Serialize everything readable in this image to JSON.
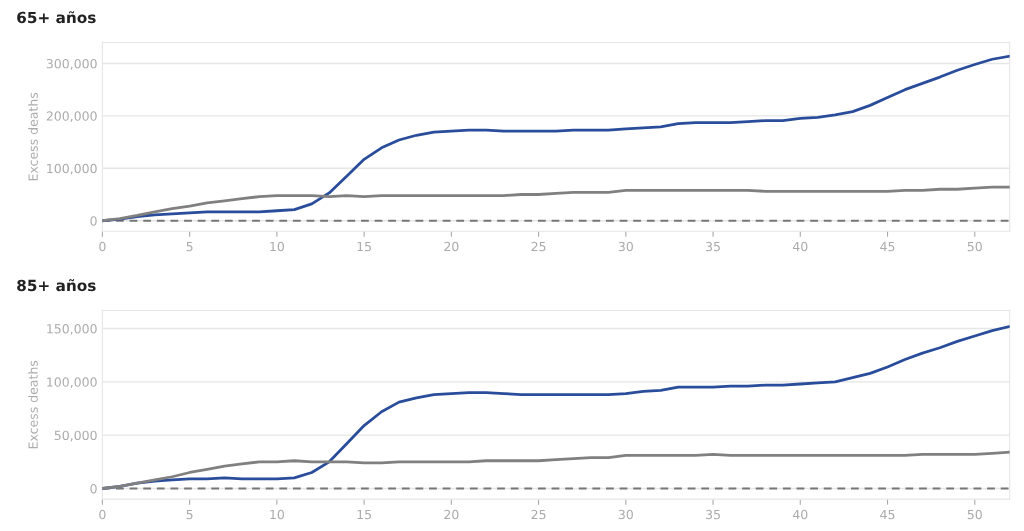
{
  "chart_data": [
    {
      "type": "line",
      "title": "65+ años",
      "ylabel": "Excess deaths",
      "x": [
        0,
        1,
        2,
        3,
        4,
        5,
        6,
        7,
        8,
        9,
        10,
        11,
        12,
        13,
        14,
        15,
        16,
        17,
        18,
        19,
        20,
        21,
        22,
        23,
        24,
        25,
        26,
        27,
        28,
        29,
        30,
        31,
        32,
        33,
        34,
        35,
        36,
        37,
        38,
        39,
        40,
        41,
        42,
        43,
        44,
        45,
        46,
        47,
        48,
        49,
        50,
        51,
        52
      ],
      "series": [
        {
          "color": "#2a4d9b",
          "values": [
            0,
            3000,
            8000,
            11000,
            13000,
            15000,
            17000,
            17000,
            17000,
            17000,
            19000,
            21000,
            32000,
            53000,
            85000,
            117000,
            139000,
            154000,
            163000,
            169000,
            171000,
            173000,
            173000,
            171000,
            171000,
            171000,
            171000,
            173000,
            173000,
            173000,
            175000,
            177000,
            179000,
            185000,
            187000,
            187000,
            187000,
            189000,
            191000,
            191000,
            195000,
            197000,
            202000,
            208000,
            220000,
            235000,
            250000,
            262000,
            274000,
            287000,
            298000,
            308000,
            314000
          ]
        },
        {
          "color": "#808080",
          "values": [
            0,
            4000,
            10000,
            17000,
            23000,
            28000,
            34000,
            38000,
            42000,
            46000,
            48000,
            48000,
            48000,
            46000,
            48000,
            46000,
            48000,
            48000,
            48000,
            48000,
            48000,
            48000,
            48000,
            48000,
            50000,
            50000,
            52000,
            54000,
            54000,
            54000,
            58000,
            58000,
            58000,
            58000,
            58000,
            58000,
            58000,
            58000,
            56000,
            56000,
            56000,
            56000,
            56000,
            56000,
            56000,
            56000,
            58000,
            58000,
            60000,
            60000,
            62000,
            64000,
            64000
          ]
        }
      ],
      "xlim": [
        0,
        52
      ],
      "xticks": [
        0,
        5,
        10,
        15,
        20,
        25,
        30,
        35,
        40,
        45,
        50
      ],
      "ylim": [
        -20000,
        340000
      ],
      "yticks": [
        {
          "value": 0,
          "label": "0"
        },
        {
          "value": 100000,
          "label": "100,000"
        },
        {
          "value": 200000,
          "label": "200,000"
        },
        {
          "value": 300000,
          "label": "300,000"
        }
      ],
      "grid": "y",
      "line_style": "solid",
      "ref_lines": [
        {
          "axis": "y",
          "value": 0,
          "color": "#777777",
          "line_style": "dashed"
        }
      ]
    },
    {
      "type": "line",
      "title": "85+ años",
      "ylabel": "Excess deaths",
      "x": [
        0,
        1,
        2,
        3,
        4,
        5,
        6,
        7,
        8,
        9,
        10,
        11,
        12,
        13,
        14,
        15,
        16,
        17,
        18,
        19,
        20,
        21,
        22,
        23,
        24,
        25,
        26,
        27,
        28,
        29,
        30,
        31,
        32,
        33,
        34,
        35,
        36,
        37,
        38,
        39,
        40,
        41,
        42,
        43,
        44,
        45,
        46,
        47,
        48,
        49,
        50,
        51,
        52
      ],
      "series": [
        {
          "color": "#2a4d9b",
          "values": [
            0,
            2000,
            5000,
            7000,
            8000,
            9000,
            9000,
            10000,
            9000,
            9000,
            9000,
            10000,
            15000,
            25000,
            42000,
            59000,
            72000,
            81000,
            85000,
            88000,
            89000,
            90000,
            90000,
            89000,
            88000,
            88000,
            88000,
            88000,
            88000,
            88000,
            89000,
            91000,
            92000,
            95000,
            95000,
            95000,
            96000,
            96000,
            97000,
            97000,
            98000,
            99000,
            100000,
            104000,
            108000,
            114000,
            121000,
            127000,
            132000,
            138000,
            143000,
            148000,
            152000
          ]
        },
        {
          "color": "#808080",
          "values": [
            0,
            2000,
            5000,
            8000,
            11000,
            15000,
            18000,
            21000,
            23000,
            25000,
            25000,
            26000,
            25000,
            25000,
            25000,
            24000,
            24000,
            25000,
            25000,
            25000,
            25000,
            25000,
            26000,
            26000,
            26000,
            26000,
            27000,
            28000,
            29000,
            29000,
            31000,
            31000,
            31000,
            31000,
            31000,
            32000,
            31000,
            31000,
            31000,
            31000,
            31000,
            31000,
            31000,
            31000,
            31000,
            31000,
            31000,
            32000,
            32000,
            32000,
            32000,
            33000,
            34000
          ]
        }
      ],
      "xlim": [
        0,
        52
      ],
      "xticks": [
        0,
        5,
        10,
        15,
        20,
        25,
        30,
        35,
        40,
        45,
        50
      ],
      "ylim": [
        -10000,
        167000
      ],
      "yticks": [
        {
          "value": 0,
          "label": "0"
        },
        {
          "value": 50000,
          "label": "50,000"
        },
        {
          "value": 100000,
          "label": "100,000"
        },
        {
          "value": 150000,
          "label": "150,000"
        }
      ],
      "grid": "y",
      "line_style": "solid",
      "ref_lines": [
        {
          "axis": "y",
          "value": 0,
          "color": "#777777",
          "line_style": "dashed"
        }
      ]
    }
  ]
}
